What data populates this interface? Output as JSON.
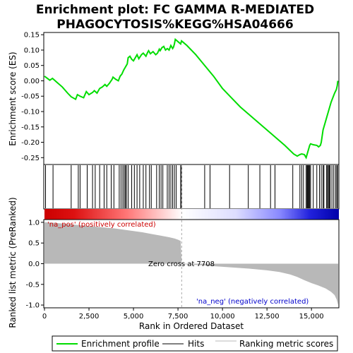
{
  "chart_data": {
    "type": "line",
    "title_lines": [
      "Enrichment plot: FC GAMMA R-MEDIATED",
      "PHAGOCYTOSIS%KEGG%HSA04666"
    ],
    "xlabel": "Rank in Ordered Dataset",
    "ylabel_top": "Enrichment score (ES)",
    "ylabel_bottom": "Ranked list metric (PreRanked)",
    "xlim": [
      0,
      16500
    ],
    "x_ticks": [
      0,
      2500,
      5000,
      7500,
      10000,
      12500,
      15000
    ],
    "x_tick_labels": [
      "0",
      "2,500",
      "5,000",
      "7,500",
      "10,000",
      "12,500",
      "15,000"
    ],
    "es_ylim": [
      -0.27,
      0.155
    ],
    "es_ticks": [
      -0.25,
      -0.2,
      -0.15,
      -0.1,
      -0.05,
      0.0,
      0.05,
      0.1,
      0.15
    ],
    "es_tick_labels": [
      "-0.25",
      "-0.20",
      "-0.15",
      "-0.10",
      "-0.05",
      "0.00",
      "0.05",
      "0.10",
      "0.15"
    ],
    "metric_ylim": [
      -1.05,
      1.05
    ],
    "metric_ticks": [
      -1.0,
      -0.5,
      0.0,
      0.5,
      1.0
    ],
    "metric_tick_labels": [
      "-1.0",
      "-0.5",
      "0.0",
      "0.5",
      "1.0"
    ],
    "es_profile": {
      "x": [
        0,
        300,
        450,
        700,
        1000,
        1300,
        1500,
        1750,
        1850,
        2000,
        2200,
        2350,
        2500,
        2700,
        2800,
        2950,
        3100,
        3250,
        3400,
        3500,
        3650,
        3800,
        3850,
        4000,
        4150,
        4250,
        4350,
        4450,
        4550,
        4650,
        4700,
        4800,
        4900,
        5000,
        5100,
        5200,
        5300,
        5450,
        5550,
        5700,
        5800,
        5850,
        5950,
        6100,
        6250,
        6350,
        6450,
        6500,
        6600,
        6700,
        6800,
        6900,
        7000,
        7100,
        7200,
        7250,
        7300,
        7350,
        7450,
        7550,
        7650,
        7700,
        7800,
        8000,
        8500,
        9000,
        9500,
        10000,
        10500,
        11000,
        11500,
        12000,
        12500,
        13000,
        13500,
        14000,
        14200,
        14350,
        14450,
        14600,
        14700,
        14750,
        14800,
        14850,
        14900,
        14950,
        15100,
        15300,
        15400,
        15500,
        15550,
        15650,
        15700,
        15750,
        15850,
        15950,
        16000,
        16100,
        16200,
        16300,
        16400,
        16450,
        16480
      ],
      "y": [
        0.015,
        0.002,
        0.008,
        -0.005,
        -0.02,
        -0.04,
        -0.052,
        -0.06,
        -0.045,
        -0.05,
        -0.055,
        -0.035,
        -0.045,
        -0.038,
        -0.032,
        -0.04,
        -0.025,
        -0.02,
        -0.012,
        -0.018,
        -0.008,
        0.005,
        0.012,
        0.005,
        0.0,
        0.015,
        0.022,
        0.035,
        0.045,
        0.055,
        0.075,
        0.08,
        0.07,
        0.065,
        0.075,
        0.085,
        0.072,
        0.085,
        0.09,
        0.08,
        0.093,
        0.098,
        0.088,
        0.095,
        0.085,
        0.09,
        0.103,
        0.098,
        0.108,
        0.112,
        0.1,
        0.105,
        0.1,
        0.115,
        0.105,
        0.11,
        0.12,
        0.135,
        0.13,
        0.125,
        0.12,
        0.13,
        0.125,
        0.115,
        0.085,
        0.05,
        0.015,
        -0.025,
        -0.055,
        -0.085,
        -0.11,
        -0.135,
        -0.16,
        -0.185,
        -0.21,
        -0.238,
        -0.245,
        -0.24,
        -0.238,
        -0.24,
        -0.25,
        -0.24,
        -0.23,
        -0.22,
        -0.21,
        -0.205,
        -0.208,
        -0.21,
        -0.215,
        -0.21,
        -0.2,
        -0.16,
        -0.15,
        -0.14,
        -0.12,
        -0.1,
        -0.09,
        -0.07,
        -0.055,
        -0.04,
        -0.028,
        -0.015,
        0.0
      ]
    },
    "hits": [
      60,
      480,
      1500,
      1900,
      2000,
      2400,
      2700,
      2850,
      3100,
      3350,
      3500,
      3750,
      3900,
      4200,
      4300,
      4400,
      4480,
      4550,
      4600,
      4700,
      4900,
      5050,
      5200,
      5350,
      5550,
      5700,
      5900,
      6000,
      6300,
      6450,
      6550,
      6650,
      6900,
      7000,
      7100,
      7200,
      7300,
      7400,
      7650,
      7700,
      9000,
      9300,
      10400,
      11450,
      12100,
      12700,
      12950,
      13950,
      14350,
      14450,
      14550,
      14700,
      14750,
      14780,
      14820,
      14860,
      14900,
      14950,
      15100,
      15300,
      15450,
      15550,
      15650,
      15700,
      15850,
      15900,
      15950,
      16000,
      16050,
      16150,
      16250,
      16350,
      16420,
      16470
    ],
    "metric": {
      "x": [
        0,
        500,
        1000,
        1500,
        2000,
        2500,
        3000,
        3500,
        4000,
        4500,
        5000,
        5500,
        6000,
        6500,
        7000,
        7300,
        7500,
        7650,
        7708,
        7800,
        8500,
        9500,
        10500,
        11500,
        12500,
        13200,
        13800,
        14200,
        14600,
        15000,
        15400,
        15800,
        16100,
        16300,
        16420,
        16500
      ],
      "y": [
        1.0,
        0.99,
        0.97,
        0.95,
        0.93,
        0.91,
        0.89,
        0.87,
        0.85,
        0.82,
        0.79,
        0.76,
        0.72,
        0.68,
        0.64,
        0.61,
        0.58,
        0.55,
        0.0,
        -0.01,
        -0.03,
        -0.06,
        -0.09,
        -0.12,
        -0.16,
        -0.2,
        -0.26,
        -0.32,
        -0.4,
        -0.47,
        -0.53,
        -0.6,
        -0.68,
        -0.76,
        -0.87,
        -1.0
      ]
    },
    "zero_cross_label": "Zero cross at 7708",
    "pos_label": "'na_pos' (positively correlated)",
    "neg_label": "'na_neg' (negatively correlated)",
    "legend": [
      "Enrichment profile",
      "Hits",
      "Ranking metric scores"
    ],
    "colors": {
      "profile": "#00dd00",
      "hits": "#000000",
      "metric_fill": "#b8b8b8",
      "pos_label": "#cc0000",
      "neg_label": "#0000cc",
      "zero_line": "#aaaaaa",
      "band_pos": "#dd0000",
      "band_mid": "#ffffff",
      "band_neg": "#0000cc"
    }
  }
}
